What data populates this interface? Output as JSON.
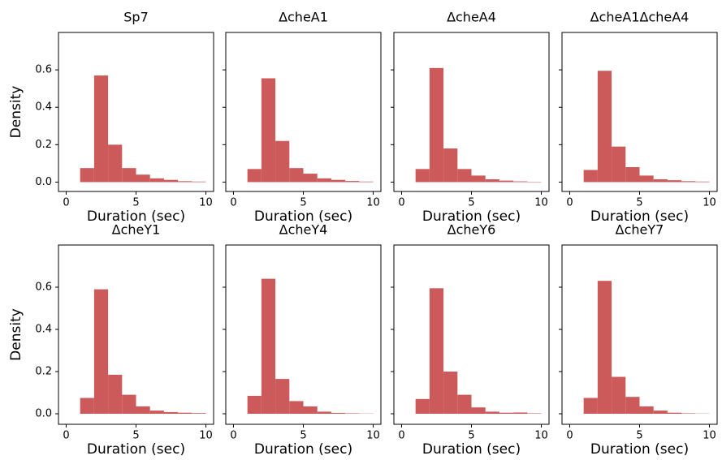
{
  "chart_data": [
    {
      "type": "histogram",
      "title": "Sp7",
      "xlabel": "Duration (sec)",
      "ylabel": "Density",
      "color": "#cd5a5a",
      "bins": [
        1,
        2,
        3,
        4,
        5,
        6,
        7,
        8,
        9,
        10
      ],
      "values": [
        0.075,
        0.57,
        0.2,
        0.075,
        0.04,
        0.02,
        0.012,
        0.005,
        0.003
      ],
      "xlim": [
        -0.55,
        10.55
      ],
      "xticks": [
        0,
        5,
        10
      ],
      "ylim": [
        -0.05,
        0.8
      ],
      "yticks": [
        0.0,
        0.2,
        0.4,
        0.6
      ]
    },
    {
      "type": "histogram",
      "title": "ΔcheA1",
      "xlabel": "Duration (sec)",
      "color": "#cd5a5a",
      "bins": [
        1,
        2,
        3,
        4,
        5,
        6,
        7,
        8,
        9,
        10
      ],
      "values": [
        0.07,
        0.555,
        0.22,
        0.075,
        0.045,
        0.02,
        0.012,
        0.006,
        0.003
      ],
      "xlim": [
        -0.55,
        10.55
      ],
      "xticks": [
        0,
        5,
        10
      ],
      "ylim": [
        -0.05,
        0.8
      ],
      "yticks": [
        0.0,
        0.2,
        0.4,
        0.6
      ]
    },
    {
      "type": "histogram",
      "title": "ΔcheA4",
      "xlabel": "Duration (sec)",
      "color": "#cd5a5a",
      "bins": [
        1,
        2,
        3,
        4,
        5,
        6,
        7,
        8,
        9,
        10
      ],
      "values": [
        0.07,
        0.61,
        0.18,
        0.07,
        0.035,
        0.015,
        0.008,
        0.004,
        0.002
      ],
      "xlim": [
        -0.55,
        10.55
      ],
      "xticks": [
        0,
        5,
        10
      ],
      "ylim": [
        -0.05,
        0.8
      ],
      "yticks": [
        0.0,
        0.2,
        0.4,
        0.6
      ]
    },
    {
      "type": "histogram",
      "title": "ΔcheA1ΔcheA4",
      "xlabel": "Duration (sec)",
      "color": "#cd5a5a",
      "bins": [
        1,
        2,
        3,
        4,
        5,
        6,
        7,
        8,
        9,
        10
      ],
      "values": [
        0.065,
        0.595,
        0.19,
        0.08,
        0.035,
        0.015,
        0.01,
        0.005,
        0.003
      ],
      "xlim": [
        -0.55,
        10.55
      ],
      "xticks": [
        0,
        5,
        10
      ],
      "ylim": [
        -0.05,
        0.8
      ],
      "yticks": [
        0.0,
        0.2,
        0.4,
        0.6
      ]
    },
    {
      "type": "histogram",
      "title": "ΔcheY1",
      "xlabel": "Duration (sec)",
      "ylabel": "Density",
      "color": "#cd5a5a",
      "bins": [
        1,
        2,
        3,
        4,
        5,
        6,
        7,
        8,
        9,
        10
      ],
      "values": [
        0.075,
        0.59,
        0.185,
        0.09,
        0.035,
        0.015,
        0.008,
        0.005,
        0.003
      ],
      "xlim": [
        -0.55,
        10.55
      ],
      "xticks": [
        0,
        5,
        10
      ],
      "ylim": [
        -0.05,
        0.8
      ],
      "yticks": [
        0.0,
        0.2,
        0.4,
        0.6
      ]
    },
    {
      "type": "histogram",
      "title": "ΔcheY4",
      "xlabel": "Duration (sec)",
      "color": "#cd5a5a",
      "bins": [
        1,
        2,
        3,
        4,
        5,
        6,
        7,
        8,
        9,
        10
      ],
      "values": [
        0.085,
        0.64,
        0.165,
        0.06,
        0.035,
        0.01,
        0.004,
        0.002,
        0.001
      ],
      "xlim": [
        -0.55,
        10.55
      ],
      "xticks": [
        0,
        5,
        10
      ],
      "ylim": [
        -0.05,
        0.8
      ],
      "yticks": [
        0.0,
        0.2,
        0.4,
        0.6
      ]
    },
    {
      "type": "histogram",
      "title": "ΔcheY6",
      "xlabel": "Duration (sec)",
      "color": "#cd5a5a",
      "bins": [
        1,
        2,
        3,
        4,
        5,
        6,
        7,
        8,
        9,
        10
      ],
      "values": [
        0.07,
        0.595,
        0.2,
        0.09,
        0.03,
        0.01,
        0.005,
        0.006,
        0.002
      ],
      "xlim": [
        -0.55,
        10.55
      ],
      "xticks": [
        0,
        5,
        10
      ],
      "ylim": [
        -0.05,
        0.8
      ],
      "yticks": [
        0.0,
        0.2,
        0.4,
        0.6
      ]
    },
    {
      "type": "histogram",
      "title": "ΔcheY7",
      "xlabel": "Duration (sec)",
      "color": "#cd5a5a",
      "bins": [
        1,
        2,
        3,
        4,
        5,
        6,
        7,
        8,
        9,
        10
      ],
      "values": [
        0.075,
        0.63,
        0.175,
        0.08,
        0.035,
        0.015,
        0.005,
        0.002,
        0.001
      ],
      "xlim": [
        -0.55,
        10.55
      ],
      "xticks": [
        0,
        5,
        10
      ],
      "ylim": [
        -0.05,
        0.8
      ],
      "yticks": [
        0.0,
        0.2,
        0.4,
        0.6
      ]
    }
  ]
}
